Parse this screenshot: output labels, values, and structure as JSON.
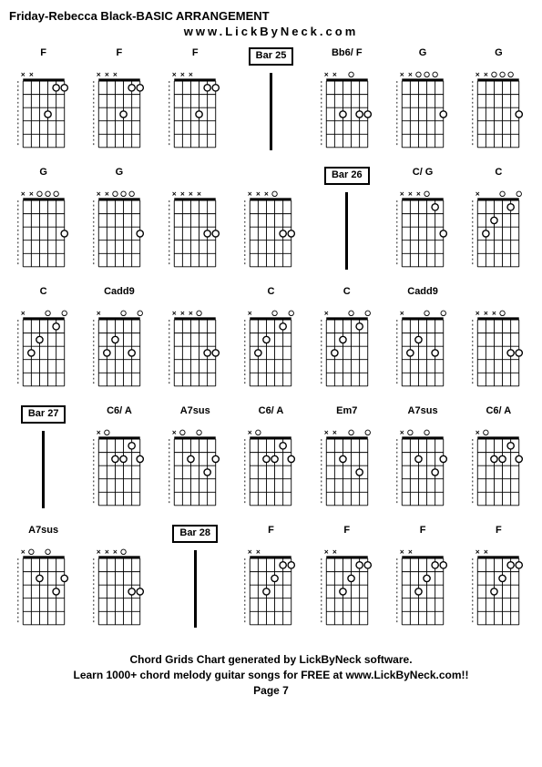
{
  "title": "Friday-Rebecca Black-BASIC ARRANGEMENT",
  "subtitle": "www.LickByNeck.com",
  "footer_line1": "Chord Grids Chart generated by LickByNeck software.",
  "footer_line2": "Learn 1000+ chord melody guitar songs for FREE at www.LickByNeck.com!!",
  "footer_line3": "Page 7",
  "chord_style": {
    "grid_color": "#000000",
    "dot_fill": "#ffffff",
    "dot_stroke": "#000000",
    "x_color": "#000000",
    "o_color": "#000000",
    "fretboard_width": 50,
    "fretboard_height": 80,
    "num_frets": 5,
    "num_strings": 6
  },
  "cells": [
    {
      "type": "chord",
      "label": "F",
      "markers": [
        "x",
        "x",
        "",
        "",
        "",
        ""
      ],
      "dots": [
        [
          4,
          3
        ],
        [
          5,
          1
        ],
        [
          6,
          1
        ]
      ],
      "barre": null
    },
    {
      "type": "chord",
      "label": "F",
      "markers": [
        "x",
        "x",
        "x",
        "",
        "",
        ""
      ],
      "dots": [
        [
          4,
          3
        ],
        [
          5,
          1
        ],
        [
          6,
          1
        ]
      ],
      "barre": null
    },
    {
      "type": "chord",
      "label": "F",
      "markers": [
        "x",
        "x",
        "x",
        "",
        "",
        ""
      ],
      "dots": [
        [
          4,
          3
        ],
        [
          5,
          1
        ],
        [
          6,
          1
        ]
      ],
      "barre": null
    },
    {
      "type": "bar",
      "label": "Bar 25"
    },
    {
      "type": "chord",
      "label": "Bb6/ F",
      "markers": [
        "x",
        "x",
        "",
        "o",
        "",
        ""
      ],
      "dots": [
        [
          3,
          3
        ],
        [
          5,
          3
        ],
        [
          6,
          3
        ]
      ],
      "barre": null
    },
    {
      "type": "chord",
      "label": "G",
      "markers": [
        "x",
        "x",
        "o",
        "o",
        "o",
        ""
      ],
      "dots": [
        [
          6,
          3
        ]
      ],
      "barre": null
    },
    {
      "type": "chord",
      "label": "G",
      "markers": [
        "x",
        "x",
        "o",
        "o",
        "o",
        ""
      ],
      "dots": [
        [
          6,
          3
        ]
      ],
      "barre": null
    },
    {
      "type": "chord",
      "label": "G",
      "markers": [
        "x",
        "x",
        "o",
        "o",
        "o",
        ""
      ],
      "dots": [
        [
          6,
          3
        ]
      ],
      "barre": null
    },
    {
      "type": "chord",
      "label": "G",
      "markers": [
        "x",
        "x",
        "o",
        "o",
        "o",
        ""
      ],
      "dots": [
        [
          6,
          3
        ]
      ],
      "barre": null
    },
    {
      "type": "chord",
      "label": "",
      "markers": [
        "x",
        "x",
        "x",
        "x",
        "",
        ""
      ],
      "dots": [
        [
          5,
          3
        ],
        [
          6,
          3
        ]
      ],
      "barre": null
    },
    {
      "type": "chord",
      "label": "",
      "markers": [
        "x",
        "x",
        "x",
        "o",
        "",
        ""
      ],
      "dots": [
        [
          5,
          3
        ],
        [
          6,
          3
        ]
      ],
      "barre": null
    },
    {
      "type": "bar",
      "label": "Bar 26"
    },
    {
      "type": "chord",
      "label": "C/ G",
      "markers": [
        "x",
        "x",
        "x",
        "o",
        "",
        ""
      ],
      "dots": [
        [
          5,
          1
        ],
        [
          6,
          3
        ]
      ],
      "barre": null
    },
    {
      "type": "chord",
      "label": "C",
      "markers": [
        "x",
        "",
        "",
        "o",
        "",
        "o"
      ],
      "dots": [
        [
          2,
          3
        ],
        [
          3,
          2
        ],
        [
          5,
          1
        ]
      ],
      "barre": null
    },
    {
      "type": "chord",
      "label": "C",
      "markers": [
        "x",
        "",
        "",
        "o",
        "",
        "o"
      ],
      "dots": [
        [
          2,
          3
        ],
        [
          3,
          2
        ],
        [
          5,
          1
        ]
      ],
      "barre": null
    },
    {
      "type": "chord",
      "label": "Cadd9",
      "markers": [
        "x",
        "",
        "",
        "o",
        "",
        "o"
      ],
      "dots": [
        [
          2,
          3
        ],
        [
          3,
          2
        ],
        [
          5,
          3
        ]
      ],
      "barre": null
    },
    {
      "type": "chord",
      "label": "",
      "markers": [
        "x",
        "x",
        "x",
        "o",
        "",
        ""
      ],
      "dots": [
        [
          5,
          3
        ],
        [
          6,
          3
        ]
      ],
      "barre": null
    },
    {
      "type": "chord",
      "label": "C",
      "markers": [
        "x",
        "",
        "",
        "o",
        "",
        "o"
      ],
      "dots": [
        [
          2,
          3
        ],
        [
          3,
          2
        ],
        [
          5,
          1
        ]
      ],
      "barre": null
    },
    {
      "type": "chord",
      "label": "C",
      "markers": [
        "x",
        "",
        "",
        "o",
        "",
        "o"
      ],
      "dots": [
        [
          2,
          3
        ],
        [
          3,
          2
        ],
        [
          5,
          1
        ]
      ],
      "barre": null
    },
    {
      "type": "chord",
      "label": "Cadd9",
      "markers": [
        "x",
        "",
        "",
        "o",
        "",
        "o"
      ],
      "dots": [
        [
          2,
          3
        ],
        [
          3,
          2
        ],
        [
          5,
          3
        ]
      ],
      "barre": null
    },
    {
      "type": "chord",
      "label": "",
      "markers": [
        "x",
        "x",
        "x",
        "o",
        "",
        ""
      ],
      "dots": [
        [
          5,
          3
        ],
        [
          6,
          3
        ]
      ],
      "barre": null
    },
    {
      "type": "bar",
      "label": "Bar 27"
    },
    {
      "type": "chord",
      "label": "C6/ A",
      "markers": [
        "x",
        "o",
        "",
        "",
        "",
        ""
      ],
      "dots": [
        [
          3,
          2
        ],
        [
          4,
          2
        ],
        [
          5,
          1
        ],
        [
          6,
          2
        ]
      ],
      "barre": null
    },
    {
      "type": "chord",
      "label": "A7sus",
      "markers": [
        "x",
        "o",
        "",
        "o",
        "",
        ""
      ],
      "dots": [
        [
          3,
          2
        ],
        [
          5,
          3
        ],
        [
          6,
          2
        ]
      ],
      "barre": null
    },
    {
      "type": "chord",
      "label": "C6/ A",
      "markers": [
        "x",
        "o",
        "",
        "",
        "",
        ""
      ],
      "dots": [
        [
          3,
          2
        ],
        [
          4,
          2
        ],
        [
          5,
          1
        ],
        [
          6,
          2
        ]
      ],
      "barre": null
    },
    {
      "type": "chord",
      "label": "Em7",
      "markers": [
        "x",
        "x",
        "",
        "o",
        "",
        "o"
      ],
      "dots": [
        [
          3,
          2
        ],
        [
          5,
          3
        ]
      ],
      "barre": null
    },
    {
      "type": "chord",
      "label": "A7sus",
      "markers": [
        "x",
        "o",
        "",
        "o",
        "",
        ""
      ],
      "dots": [
        [
          3,
          2
        ],
        [
          5,
          3
        ],
        [
          6,
          2
        ]
      ],
      "barre": null
    },
    {
      "type": "chord",
      "label": "C6/ A",
      "markers": [
        "x",
        "o",
        "",
        "",
        "",
        ""
      ],
      "dots": [
        [
          3,
          2
        ],
        [
          4,
          2
        ],
        [
          5,
          1
        ],
        [
          6,
          2
        ]
      ],
      "barre": null
    },
    {
      "type": "chord",
      "label": "A7sus",
      "markers": [
        "x",
        "o",
        "",
        "o",
        "",
        ""
      ],
      "dots": [
        [
          3,
          2
        ],
        [
          5,
          3
        ],
        [
          6,
          2
        ]
      ],
      "barre": null
    },
    {
      "type": "chord",
      "label": "",
      "markers": [
        "x",
        "x",
        "x",
        "o",
        "",
        ""
      ],
      "dots": [
        [
          5,
          3
        ],
        [
          6,
          3
        ]
      ],
      "barre": null
    },
    {
      "type": "bar",
      "label": "Bar 28"
    },
    {
      "type": "chord",
      "label": "F",
      "markers": [
        "x",
        "x",
        "",
        "",
        "",
        ""
      ],
      "dots": [
        [
          3,
          3
        ],
        [
          4,
          2
        ],
        [
          5,
          1
        ],
        [
          6,
          1
        ]
      ],
      "barre": null
    },
    {
      "type": "chord",
      "label": "F",
      "markers": [
        "x",
        "x",
        "",
        "",
        "",
        ""
      ],
      "dots": [
        [
          3,
          3
        ],
        [
          4,
          2
        ],
        [
          5,
          1
        ],
        [
          6,
          1
        ]
      ],
      "barre": null
    },
    {
      "type": "chord",
      "label": "F",
      "markers": [
        "x",
        "x",
        "",
        "",
        "",
        ""
      ],
      "dots": [
        [
          3,
          3
        ],
        [
          4,
          2
        ],
        [
          5,
          1
        ],
        [
          6,
          1
        ]
      ],
      "barre": null
    },
    {
      "type": "chord",
      "label": "F",
      "markers": [
        "x",
        "x",
        "",
        "",
        "",
        ""
      ],
      "dots": [
        [
          3,
          3
        ],
        [
          4,
          2
        ],
        [
          5,
          1
        ],
        [
          6,
          1
        ]
      ],
      "barre": null
    }
  ]
}
